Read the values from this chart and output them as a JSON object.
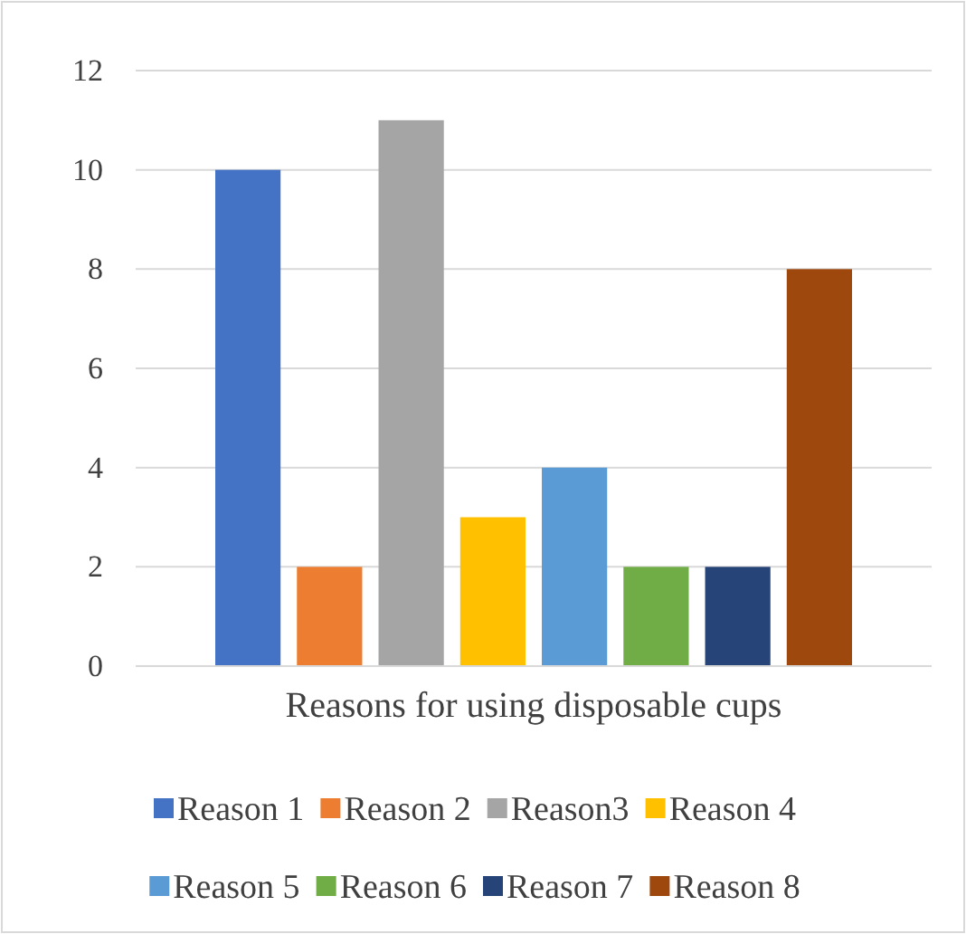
{
  "chart_data": {
    "type": "bar",
    "categories": [
      "Reasons for using disposable cups"
    ],
    "series": [
      {
        "name": "Reason 1",
        "color": "#4472c4",
        "values": [
          10
        ]
      },
      {
        "name": "Reason 2",
        "color": "#ed7d31",
        "values": [
          2
        ]
      },
      {
        "name": "Reason3",
        "color": "#a5a5a5",
        "values": [
          11
        ]
      },
      {
        "name": "Reason 4",
        "color": "#ffc000",
        "values": [
          3
        ]
      },
      {
        "name": "Reason 5",
        "color": "#5b9bd5",
        "values": [
          4
        ]
      },
      {
        "name": "Reason 6",
        "color": "#70ad47",
        "values": [
          2
        ]
      },
      {
        "name": "Reason 7",
        "color": "#264478",
        "values": [
          2
        ]
      },
      {
        "name": "Reason 8",
        "color": "#9e480e",
        "values": [
          8
        ]
      }
    ],
    "ylim": [
      0,
      12
    ],
    "yticks": [
      0,
      2,
      4,
      6,
      8,
      10,
      12
    ],
    "grid": "y",
    "legend": "bottom"
  }
}
